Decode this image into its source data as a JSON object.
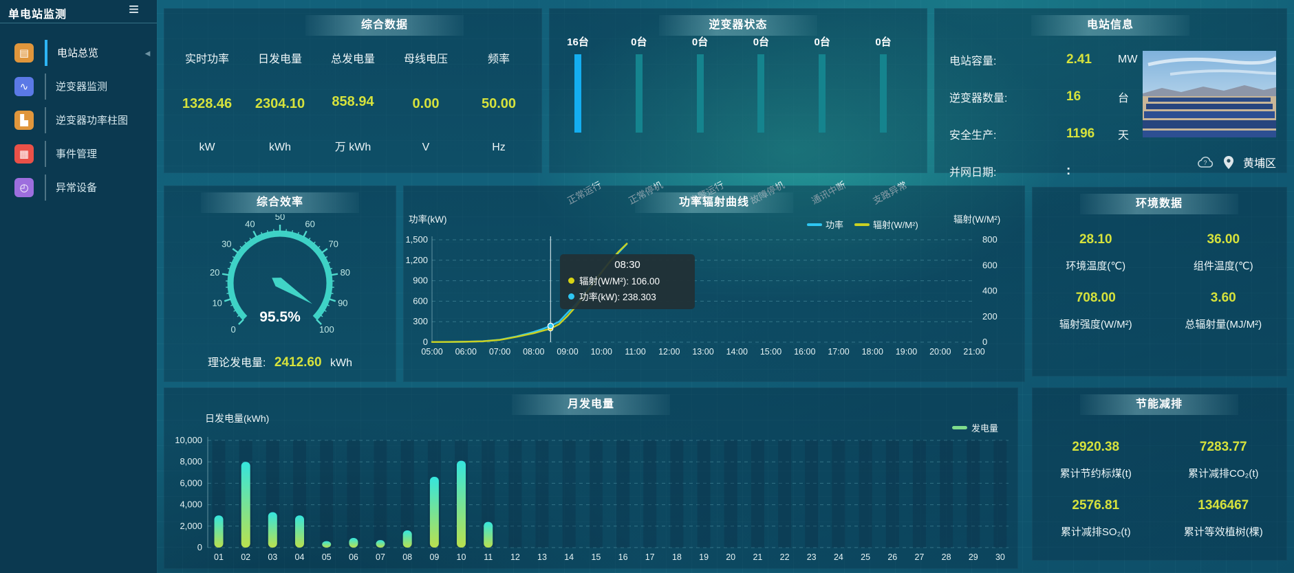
{
  "app": {
    "title": "单电站监测"
  },
  "theme": {
    "accent_value": "#d6e23c",
    "line_power": "#2ec6f2",
    "line_radiation": "#c9d123",
    "inverter_bar_active": "#14aef0",
    "inverter_bar_idle": "#15848e",
    "bar_gradient_top": "#35e5de",
    "bar_gradient_bottom": "#b9e04e",
    "legend_generation": "#7fdc8c",
    "gauge_color": "#3ed2c6",
    "tooltip_dot_radiation": "#d8d414",
    "tooltip_dot_power": "#2ec6f2"
  },
  "sidebar": {
    "items": [
      {
        "label": "电站总览",
        "icon": "station-overview-icon",
        "icon_color": "#e0963c",
        "active": true
      },
      {
        "label": "逆变器监测",
        "icon": "inverter-monitor-icon",
        "icon_color": "#5b79e6",
        "active": false
      },
      {
        "label": "逆变器功率柱图",
        "icon": "inverter-power-bars-icon",
        "icon_color": "#e0963c",
        "active": false
      },
      {
        "label": "事件管理",
        "icon": "event-management-icon",
        "icon_color": "#ea5148",
        "active": false
      },
      {
        "label": "异常设备",
        "icon": "abnormal-device-icon",
        "icon_color": "#9d6ede",
        "active": false
      }
    ]
  },
  "panels": {
    "summary": {
      "title": "综合数据",
      "metrics": [
        {
          "label": "实时功率",
          "value": "1328.46",
          "unit": "kW"
        },
        {
          "label": "日发电量",
          "value": "2304.10",
          "unit": "kWh"
        },
        {
          "label": "总发电量",
          "value": "858.94",
          "unit": "万 kWh"
        },
        {
          "label": "母线电压",
          "value": "0.00",
          "unit": "V"
        },
        {
          "label": "频率",
          "value": "50.00",
          "unit": "Hz"
        }
      ]
    },
    "inverter_status": {
      "title": "逆变器状态",
      "items": [
        {
          "count": "16台",
          "label": "正常运行",
          "active": true
        },
        {
          "count": "0台",
          "label": "正常停机",
          "active": false
        },
        {
          "count": "0台",
          "label": "告警运行",
          "active": false
        },
        {
          "count": "0台",
          "label": "故障停机",
          "active": false
        },
        {
          "count": "0台",
          "label": "通讯中断",
          "active": false
        },
        {
          "count": "0台",
          "label": "支路异常",
          "active": false
        }
      ]
    },
    "station_info": {
      "title": "电站信息",
      "rows": [
        {
          "label": "电站容量:",
          "value": "2.41",
          "unit": "MW",
          "plain": false
        },
        {
          "label": "逆变器数量:",
          "value": "16",
          "unit": "台",
          "plain": false
        },
        {
          "label": "安全生产:",
          "value": "1196",
          "unit": "天",
          "plain": false
        },
        {
          "label": "并网日期:",
          "value": ":",
          "unit": "",
          "plain": true
        }
      ],
      "location": "黄埔区"
    },
    "efficiency": {
      "title": "综合效率",
      "value_text": "95.5%",
      "value_pct": 95.5,
      "gauge_ticks": [
        "0",
        "10",
        "20",
        "30",
        "40",
        "50",
        "60",
        "70",
        "80",
        "90",
        "100"
      ],
      "footer_label": "理论发电量:",
      "footer_value": "2412.60",
      "footer_unit": "kWh"
    },
    "environment": {
      "title": "环境数据",
      "items": [
        {
          "value": "28.10",
          "label": "环境温度(℃)"
        },
        {
          "value": "36.00",
          "label": "组件温度(℃)"
        },
        {
          "value": "708.00",
          "label": "辐射强度(W/M²)"
        },
        {
          "value": "3.60",
          "label": "总辐射量(MJ/M²)"
        }
      ]
    },
    "savings": {
      "title": "节能减排",
      "items": [
        {
          "value": "2920.38",
          "label": "累计节约标煤(t)"
        },
        {
          "value": "7283.77",
          "label": "累计减排CO₂(t)"
        },
        {
          "value": "2576.81",
          "label": "累计减排SO₂(t)"
        },
        {
          "value": "1346467",
          "label": "累计等效植树(棵)"
        }
      ]
    }
  },
  "chart_data": [
    {
      "id": "power-radiation-curve",
      "type": "line",
      "title": "功率辐射曲线",
      "x_ticks": [
        "05:00",
        "06:00",
        "07:00",
        "08:00",
        "09:00",
        "10:00",
        "11:00",
        "12:00",
        "13:00",
        "14:00",
        "15:00",
        "16:00",
        "17:00",
        "18:00",
        "19:00",
        "20:00",
        "21:00"
      ],
      "x_range_hours": [
        5,
        21
      ],
      "left_axis": {
        "name": "功率(kW)",
        "ticks": [
          "1,500",
          "1,200",
          "900",
          "600",
          "300",
          "0"
        ],
        "max": 1500
      },
      "right_axis": {
        "name": "辐射(W/M²)",
        "ticks": [
          "800",
          "600",
          "400",
          "200",
          "0"
        ],
        "max": 800
      },
      "legend": [
        {
          "name": "功率",
          "color": "#2ec6f2"
        },
        {
          "name": "辐射(W/M²)",
          "color": "#c9d123"
        }
      ],
      "grid": "horizontal dashed",
      "series": [
        {
          "name": "功率",
          "axis": "left",
          "color": "#2ec6f2",
          "points": [
            [
              5,
              2
            ],
            [
              5.5,
              3
            ],
            [
              6,
              6
            ],
            [
              6.5,
              14
            ],
            [
              7,
              35
            ],
            [
              7.5,
              85
            ],
            [
              8,
              150
            ],
            [
              8.25,
              190
            ],
            [
              8.5,
              238.3
            ],
            [
              8.75,
              300
            ],
            [
              9,
              430
            ],
            [
              9.25,
              560
            ],
            [
              9.5,
              720
            ],
            [
              9.75,
              880
            ],
            [
              10,
              1030
            ],
            [
              10.25,
              1180
            ],
            [
              10.5,
              1310
            ],
            [
              10.75,
              1440
            ]
          ]
        },
        {
          "name": "辐射(W/M²)",
          "axis": "right",
          "color": "#c9d123",
          "points": [
            [
              5,
              1
            ],
            [
              5.5,
              2
            ],
            [
              6,
              3
            ],
            [
              6.5,
              7
            ],
            [
              7,
              17
            ],
            [
              7.5,
              42
            ],
            [
              8,
              70
            ],
            [
              8.25,
              88
            ],
            [
              8.5,
              106
            ],
            [
              8.75,
              140
            ],
            [
              9,
              205
            ],
            [
              9.25,
              280
            ],
            [
              9.5,
              365
            ],
            [
              9.75,
              455
            ],
            [
              10,
              545
            ],
            [
              10.25,
              630
            ],
            [
              10.5,
              705
            ],
            [
              10.75,
              770
            ]
          ]
        }
      ],
      "tooltip": {
        "time": "08:30",
        "x_hour": 8.5,
        "rows": [
          {
            "label": "辐射(W/M²)",
            "value": "106.00",
            "color": "#d8d414"
          },
          {
            "label": "功率(kW)",
            "value": "238.303",
            "color": "#2ec6f2"
          }
        ]
      }
    },
    {
      "id": "monthly-generation",
      "type": "bar",
      "title": "月发电量",
      "ylabel": "日发电量(kWh)",
      "y_ticks": [
        "10,000",
        "8,000",
        "6,000",
        "4,000",
        "2,000",
        "0"
      ],
      "ylim": [
        0,
        10000
      ],
      "legend": [
        {
          "name": "发电量",
          "color": "#7fdc8c"
        }
      ],
      "categories": [
        "01",
        "02",
        "03",
        "04",
        "05",
        "06",
        "07",
        "08",
        "09",
        "10",
        "11",
        "12",
        "13",
        "14",
        "15",
        "16",
        "17",
        "18",
        "19",
        "20",
        "21",
        "22",
        "23",
        "24",
        "25",
        "26",
        "27",
        "28",
        "29",
        "30"
      ],
      "values": [
        3000,
        8000,
        3300,
        3000,
        600,
        900,
        700,
        1600,
        6600,
        8100,
        2400,
        0,
        0,
        0,
        0,
        0,
        0,
        0,
        0,
        0,
        0,
        0,
        0,
        0,
        0,
        0,
        0,
        0,
        0,
        0
      ]
    }
  ]
}
